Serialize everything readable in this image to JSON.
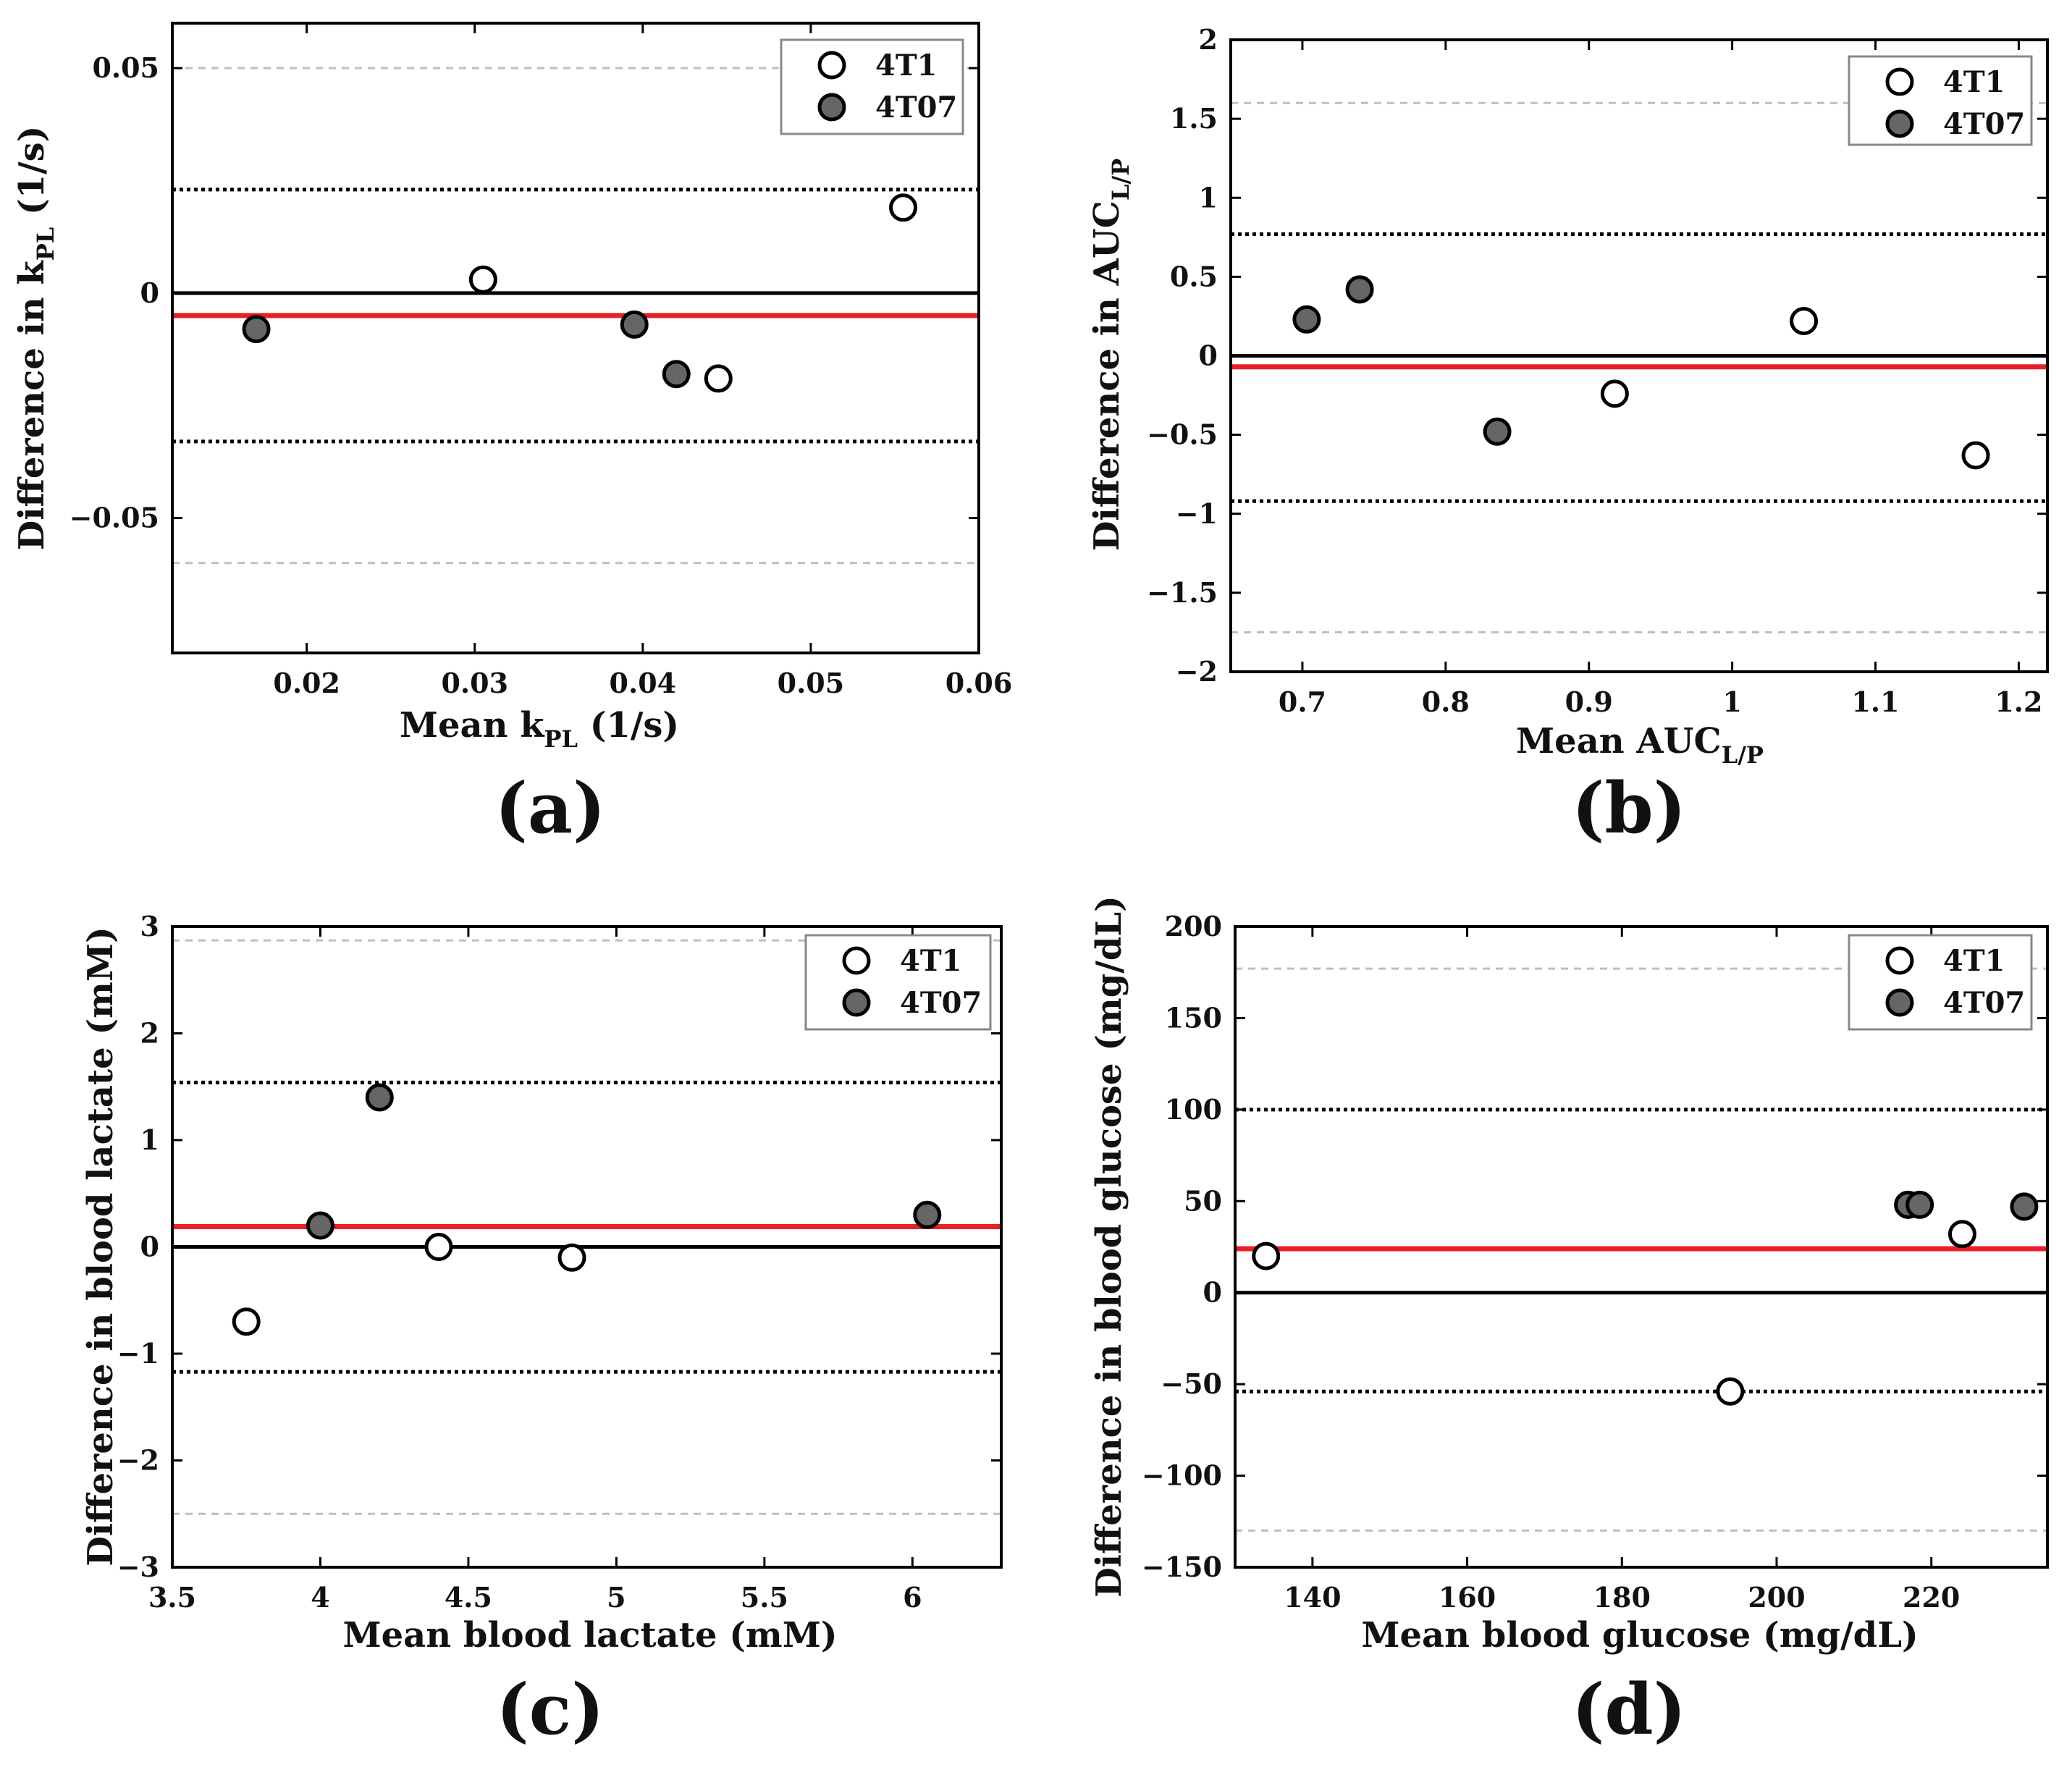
{
  "figure": {
    "legend_labels": [
      "4T1",
      "4T07"
    ],
    "colors": {
      "open_marker_fill": "#ffffff",
      "filled_marker_fill": "#666666",
      "marker_edge": "#000000",
      "bias_line": "#e8202a",
      "limit_line": "#000000",
      "outer_limit_line": "#bfbfbf",
      "zero_line": "#000000"
    }
  },
  "chart_data": [
    {
      "id": "a",
      "type": "scatter",
      "panel_label": "(a)",
      "xlabel": {
        "main": "Mean k",
        "sub": "PL",
        "tail": " (1/s)"
      },
      "ylabel": {
        "main": "Difference in k",
        "sub": "PL",
        "tail": " (1/s)"
      },
      "xlim": [
        0.012,
        0.06
      ],
      "ylim": [
        -0.08,
        0.06
      ],
      "xticks": [
        0.02,
        0.03,
        0.04,
        0.05,
        0.06
      ],
      "xtick_labels": [
        "0.02",
        "0.03",
        "0.04",
        "0.05",
        "0.06"
      ],
      "yticks": [
        -0.05,
        0,
        0.05
      ],
      "ytick_labels": [
        "−0.05",
        "0",
        "0.05"
      ],
      "lines": {
        "zero": 0,
        "bias": -0.005,
        "limits": [
          0.023,
          -0.033
        ],
        "outer_limits": [
          0.05,
          -0.06
        ]
      },
      "series": [
        {
          "name": "4T1",
          "style": "open",
          "points": [
            [
              0.0305,
              0.003
            ],
            [
              0.0445,
              -0.019
            ],
            [
              0.0555,
              0.019
            ]
          ]
        },
        {
          "name": "4T07",
          "style": "filled",
          "points": [
            [
              0.017,
              -0.008
            ],
            [
              0.0395,
              -0.007
            ],
            [
              0.042,
              -0.018
            ]
          ]
        }
      ]
    },
    {
      "id": "b",
      "type": "scatter",
      "panel_label": "(b)",
      "xlabel": {
        "main": "Mean AUC",
        "sub": "L/P",
        "tail": ""
      },
      "ylabel": {
        "main": "Difference in AUC",
        "sub": "L/P",
        "tail": ""
      },
      "xlim": [
        0.65,
        1.22
      ],
      "ylim": [
        -2,
        2
      ],
      "xticks": [
        0.7,
        0.8,
        0.9,
        1.0,
        1.1,
        1.2
      ],
      "xtick_labels": [
        "0.7",
        "0.8",
        "0.9",
        "1",
        "1.1",
        "1.2"
      ],
      "yticks": [
        -2,
        -1.5,
        -1,
        -0.5,
        0,
        0.5,
        1,
        1.5,
        2
      ],
      "ytick_labels": [
        "−2",
        "−1.5",
        "−1",
        "−0.5",
        "0",
        "0.5",
        "1",
        "1.5",
        "2"
      ],
      "lines": {
        "zero": 0,
        "bias": -0.07,
        "limits": [
          0.77,
          -0.92
        ],
        "outer_limits": [
          1.6,
          -1.75
        ]
      },
      "series": [
        {
          "name": "4T1",
          "style": "open",
          "points": [
            [
              0.918,
              -0.24
            ],
            [
              1.05,
              0.22
            ],
            [
              1.17,
              -0.63
            ]
          ]
        },
        {
          "name": "4T07",
          "style": "filled",
          "points": [
            [
              0.703,
              0.23
            ],
            [
              0.74,
              0.42
            ],
            [
              0.836,
              -0.48
            ]
          ]
        }
      ]
    },
    {
      "id": "c",
      "type": "scatter",
      "panel_label": "(c)",
      "xlabel": {
        "main": "Mean blood lactate (mM)",
        "sub": "",
        "tail": ""
      },
      "ylabel": {
        "main": "Difference in blood lactate (mM)",
        "sub": "",
        "tail": ""
      },
      "xlim": [
        3.5,
        6.3
      ],
      "ylim": [
        -3,
        3
      ],
      "xticks": [
        3.5,
        4,
        4.5,
        5,
        5.5,
        6
      ],
      "xtick_labels": [
        "3.5",
        "4",
        "4.5",
        "5",
        "5.5",
        "6"
      ],
      "yticks": [
        -3,
        -2,
        -1,
        0,
        1,
        2,
        3
      ],
      "ytick_labels": [
        "−3",
        "−2",
        "−1",
        "0",
        "1",
        "2",
        "3"
      ],
      "lines": {
        "zero": 0,
        "bias": 0.19,
        "limits": [
          1.54,
          -1.17
        ],
        "outer_limits": [
          2.87,
          -2.5
        ]
      },
      "series": [
        {
          "name": "4T1",
          "style": "open",
          "points": [
            [
              3.75,
              -0.7
            ],
            [
              4.4,
              0.0
            ],
            [
              4.85,
              -0.1
            ]
          ]
        },
        {
          "name": "4T07",
          "style": "filled",
          "points": [
            [
              4.0,
              0.2
            ],
            [
              4.2,
              1.4
            ],
            [
              6.05,
              0.3
            ]
          ]
        }
      ]
    },
    {
      "id": "d",
      "type": "scatter",
      "panel_label": "(d)",
      "xlabel": {
        "main": "Mean blood glucose (mg/dL)",
        "sub": "",
        "tail": ""
      },
      "ylabel": {
        "main": "Difference in blood glucose (mg/dL)",
        "sub": "",
        "tail": ""
      },
      "xlim": [
        130,
        235
      ],
      "ylim": [
        -150,
        200
      ],
      "xticks": [
        140,
        160,
        180,
        200,
        220
      ],
      "xtick_labels": [
        "140",
        "160",
        "180",
        "200",
        "220"
      ],
      "yticks": [
        -150,
        -100,
        -50,
        0,
        50,
        100,
        150,
        200
      ],
      "ytick_labels": [
        "−150",
        "−100",
        "−50",
        "0",
        "50",
        "100",
        "150",
        "200"
      ],
      "lines": {
        "zero": 0,
        "bias": 24,
        "limits": [
          100,
          -54
        ],
        "outer_limits": [
          177,
          -130
        ]
      },
      "series": [
        {
          "name": "4T1",
          "style": "open",
          "points": [
            [
              134,
              20
            ],
            [
              194,
              -54
            ],
            [
              224,
              32
            ]
          ]
        },
        {
          "name": "4T07",
          "style": "filled",
          "points": [
            [
              217,
              48
            ],
            [
              218.5,
              48
            ],
            [
              232,
              47
            ]
          ]
        }
      ]
    }
  ]
}
